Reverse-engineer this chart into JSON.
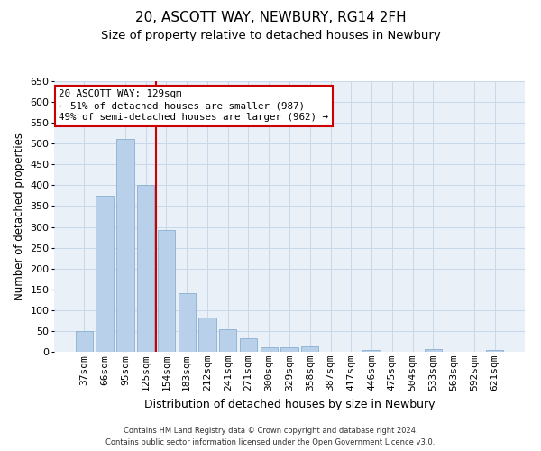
{
  "title": "20, ASCOTT WAY, NEWBURY, RG14 2FH",
  "subtitle": "Size of property relative to detached houses in Newbury",
  "xlabel": "Distribution of detached houses by size in Newbury",
  "ylabel": "Number of detached properties",
  "categories": [
    "37sqm",
    "66sqm",
    "95sqm",
    "125sqm",
    "154sqm",
    "183sqm",
    "212sqm",
    "241sqm",
    "271sqm",
    "300sqm",
    "329sqm",
    "358sqm",
    "387sqm",
    "417sqm",
    "446sqm",
    "475sqm",
    "504sqm",
    "533sqm",
    "563sqm",
    "592sqm",
    "621sqm"
  ],
  "values": [
    50,
    375,
    512,
    400,
    293,
    141,
    82,
    55,
    32,
    11,
    11,
    13,
    0,
    0,
    5,
    0,
    0,
    7,
    0,
    0,
    5
  ],
  "bar_color": "#b8d0ea",
  "bar_edge_color": "#8ab0d0",
  "vline_color": "#cc0000",
  "annotation_text": "20 ASCOTT WAY: 129sqm\n← 51% of detached houses are smaller (987)\n49% of semi-detached houses are larger (962) →",
  "annotation_box_color": "#ffffff",
  "annotation_box_edge": "#cc0000",
  "ylim": [
    0,
    650
  ],
  "yticks": [
    0,
    50,
    100,
    150,
    200,
    250,
    300,
    350,
    400,
    450,
    500,
    550,
    600,
    650
  ],
  "grid_color": "#c8d8e8",
  "bg_color": "#eaf0f8",
  "footer": "Contains HM Land Registry data © Crown copyright and database right 2024.\nContains public sector information licensed under the Open Government Licence v3.0.",
  "title_fontsize": 11,
  "subtitle_fontsize": 9.5,
  "xlabel_fontsize": 9,
  "ylabel_fontsize": 8.5,
  "tick_fontsize": 8,
  "footer_fontsize": 6
}
